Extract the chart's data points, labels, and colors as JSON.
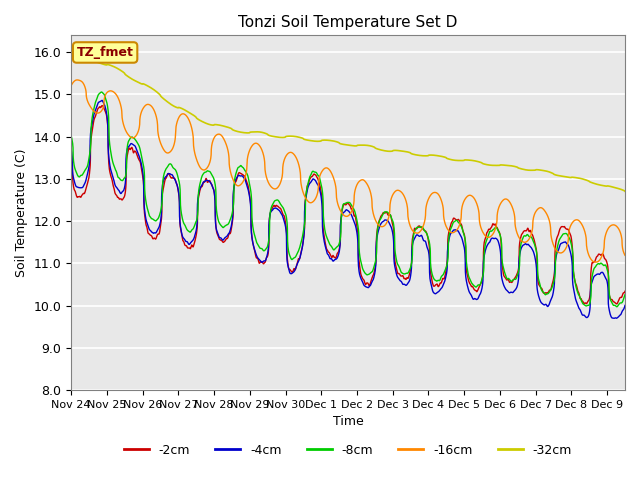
{
  "title": "Tonzi Soil Temperature Set D",
  "xlabel": "Time",
  "ylabel": "Soil Temperature (C)",
  "ylim": [
    8.0,
    16.4
  ],
  "xlim_days": [
    0,
    15.5
  ],
  "plot_bg_color": "#e8e8e8",
  "grid_color": "white",
  "annotation_text": "TZ_fmet",
  "annotation_bg": "#ffff99",
  "annotation_edge": "#cc8800",
  "legend_entries": [
    "-2cm",
    "-4cm",
    "-8cm",
    "-16cm",
    "-32cm"
  ],
  "line_colors": [
    "#cc0000",
    "#0000cc",
    "#00cc00",
    "#ff8800",
    "#cccc00"
  ],
  "xtick_labels": [
    "Nov 24",
    "Nov 25",
    "Nov 26",
    "Nov 27",
    "Nov 28",
    "Nov 29",
    "Nov 30",
    "Dec 1",
    "Dec 2",
    "Dec 3",
    "Dec 4",
    "Dec 5",
    "Dec 6",
    "Dec 7",
    "Dec 8",
    "Dec 9"
  ],
  "xtick_positions": [
    0,
    1,
    2,
    3,
    4,
    5,
    6,
    7,
    8,
    9,
    10,
    11,
    12,
    13,
    14,
    15
  ],
  "ytick_labels": [
    "8.0",
    "9.0",
    "10.0",
    "11.0",
    "12.0",
    "13.0",
    "14.0",
    "15.0",
    "16.0"
  ],
  "ytick_positions": [
    8.0,
    9.0,
    10.0,
    11.0,
    12.0,
    13.0,
    14.0,
    15.0,
    16.0
  ]
}
